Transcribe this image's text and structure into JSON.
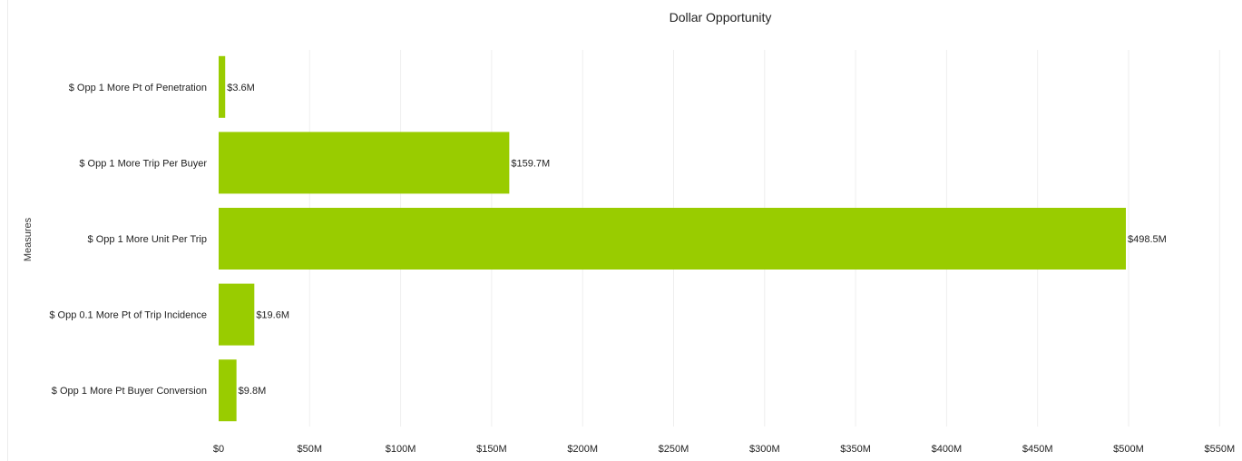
{
  "chart_data": {
    "type": "bar",
    "orientation": "horizontal",
    "title": "Dollar Opportunity",
    "xlabel": "",
    "ylabel": "Measures",
    "categories": [
      "$ Opp 1 More Pt of Penetration",
      "$ Opp 1 More Trip Per Buyer",
      "$ Opp 1 More Unit Per Trip",
      "$ Opp 0.1 More Pt of Trip Incidence",
      "$ Opp 1 More Pt Buyer Conversion"
    ],
    "values": [
      3.6,
      159.7,
      498.5,
      19.6,
      9.8
    ],
    "value_unit": "millions of dollars",
    "data_labels": [
      "$3.6M",
      "$159.7M",
      "$498.5M",
      "$19.6M",
      "$9.8M"
    ],
    "xlim": [
      0,
      550
    ],
    "x_ticks": [
      0,
      50,
      100,
      150,
      200,
      250,
      300,
      350,
      400,
      450,
      500,
      550
    ],
    "x_tick_labels": [
      "$0",
      "$50M",
      "$100M",
      "$150M",
      "$200M",
      "$250M",
      "$300M",
      "$350M",
      "$400M",
      "$450M",
      "$500M",
      "$550M"
    ],
    "grid": "vertical",
    "legend": "none",
    "colors": {
      "bar": "#99cc00",
      "grid": "#eeeeee",
      "text": "#222222"
    }
  }
}
